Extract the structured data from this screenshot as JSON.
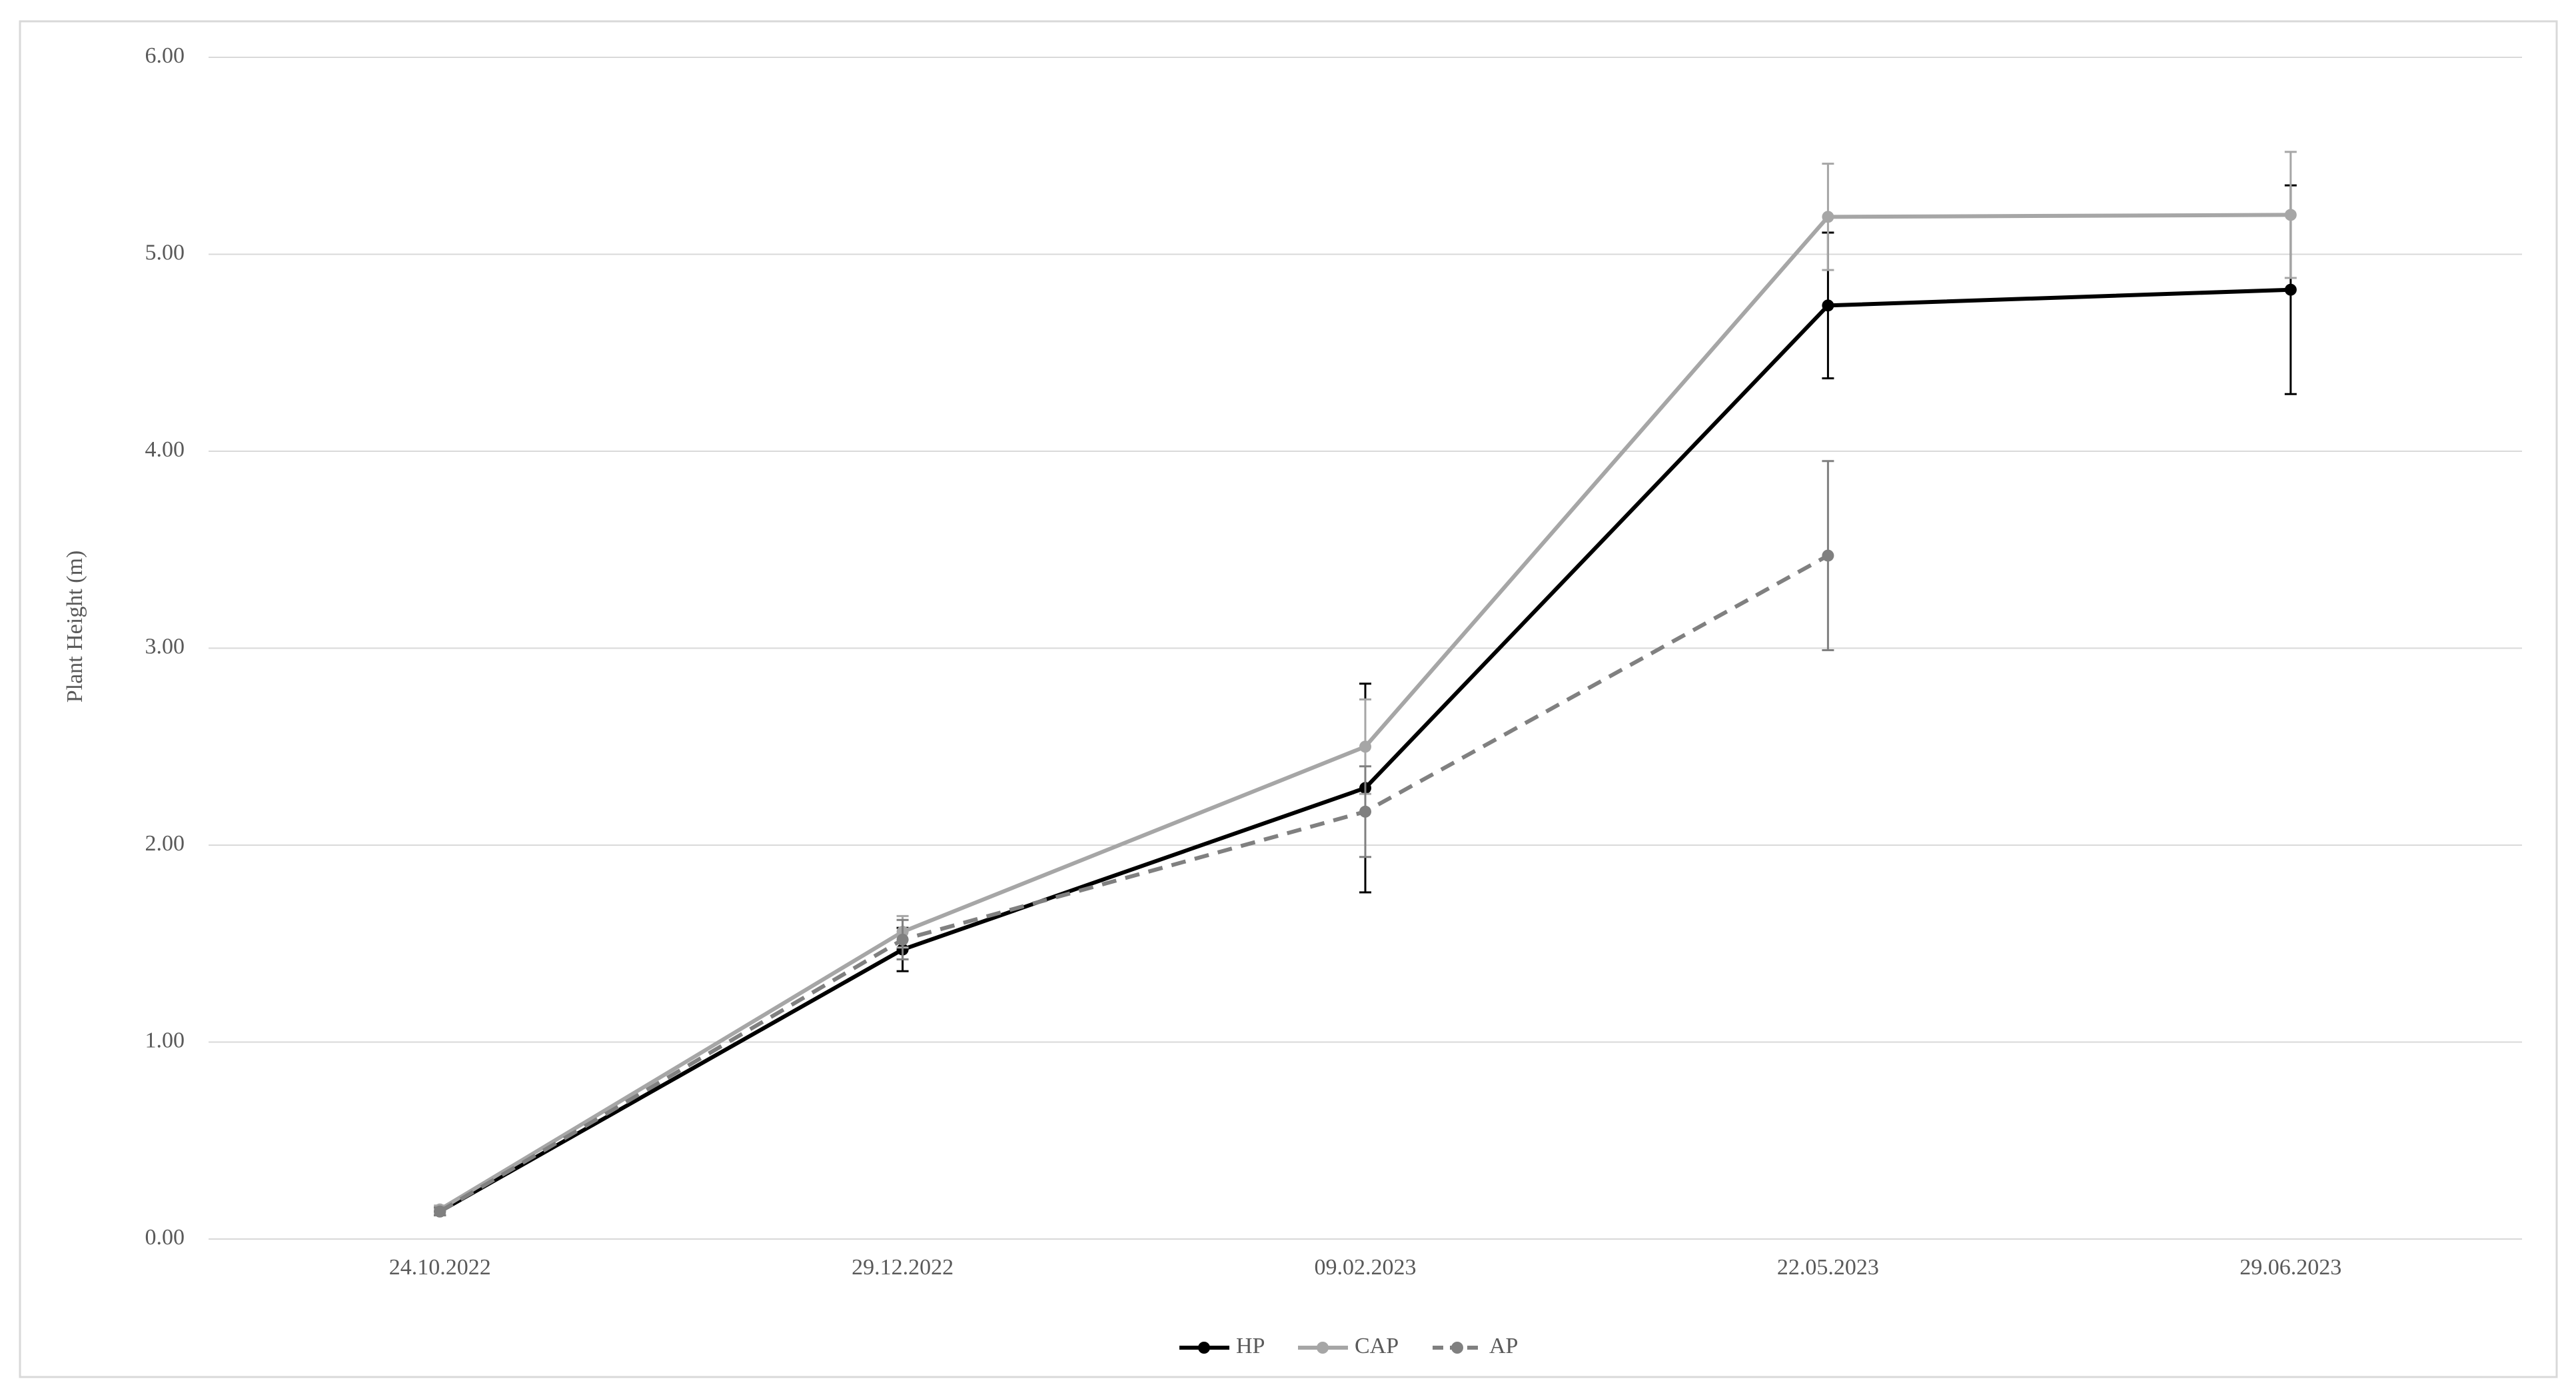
{
  "chart_data": {
    "type": "line",
    "y_label": "Plant Height (m)",
    "categories": [
      "24.10.2022",
      "29.12.2022",
      "09.02.2023",
      "22.05.2023",
      "29.06.2023"
    ],
    "series": [
      {
        "name": "HP",
        "color": "#000000",
        "dashed": false,
        "values": [
          0.14,
          1.47,
          2.29,
          4.74,
          4.82
        ],
        "errors": [
          0.02,
          0.11,
          0.53,
          0.37,
          0.53
        ]
      },
      {
        "name": "CAP",
        "color": "#a6a6a6",
        "dashed": false,
        "values": [
          0.15,
          1.56,
          2.5,
          5.19,
          5.2
        ],
        "errors": [
          0.02,
          0.08,
          0.24,
          0.27,
          0.32
        ]
      },
      {
        "name": "AP",
        "color": "#808080",
        "dashed": true,
        "values": [
          0.14,
          1.52,
          2.17,
          3.47,
          null
        ],
        "errors": [
          0.02,
          0.1,
          0.23,
          0.48,
          null
        ]
      }
    ],
    "ylim": [
      0,
      6
    ],
    "yticks": [
      {
        "value": 0,
        "label": "0.00"
      },
      {
        "value": 1,
        "label": "1.00"
      },
      {
        "value": 2,
        "label": "2.00"
      },
      {
        "value": 3,
        "label": "3.00"
      },
      {
        "value": 4,
        "label": "4.00"
      },
      {
        "value": 5,
        "label": "5.00"
      },
      {
        "value": 6,
        "label": "6.00"
      }
    ],
    "grid": true,
    "legend": "bottom"
  }
}
